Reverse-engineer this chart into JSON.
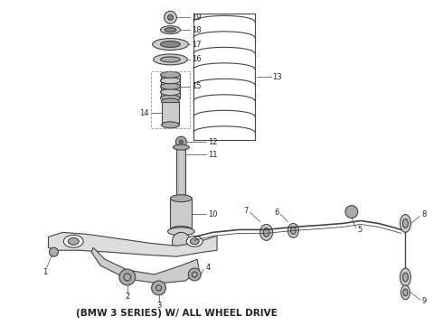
{
  "bg_color": "white",
  "line_color": "#444444",
  "gray1": "#aaaaaa",
  "gray2": "#cccccc",
  "gray3": "#888888",
  "gray4": "#dddddd",
  "text_color": "#222222",
  "caption": "(BMW 3 SERIES) W/ ALL WHEEL DRIVE",
  "caption_fontsize": 7.5,
  "fig_width": 4.9,
  "fig_height": 3.6,
  "dpi": 100
}
